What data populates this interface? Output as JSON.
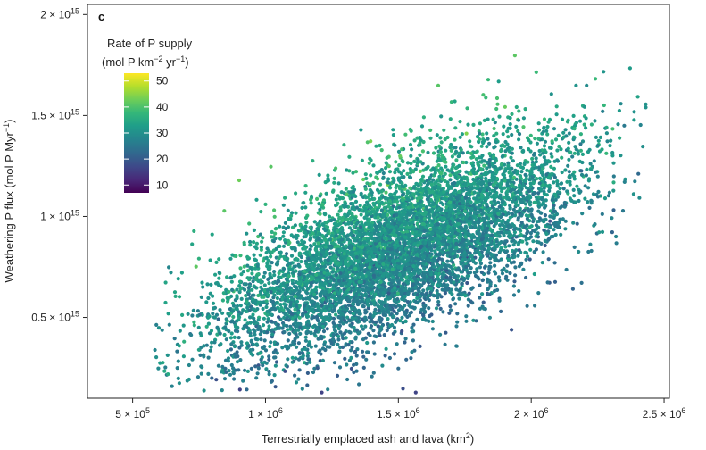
{
  "chart_data": {
    "type": "scatter",
    "panel_label": "c",
    "xlabel": "Terrestrially emplaced ash and lava (km",
    "xlabel_sup": "2",
    "xlabel_end": ")",
    "ylabel": "Weathering P flux (mol P Myr",
    "ylabel_sup": "−1",
    "ylabel_end": ")",
    "xlim": [
      330000,
      2520000
    ],
    "ylim": [
      100000000000000.0,
      2050000000000000.0
    ],
    "x_ticks": [
      {
        "value": 500000,
        "mantissa": "5 × 10",
        "exp": "5"
      },
      {
        "value": 1000000,
        "mantissa": "1 × 10",
        "exp": "6"
      },
      {
        "value": 1500000,
        "mantissa": "1.5 × 10",
        "exp": "6"
      },
      {
        "value": 2000000,
        "mantissa": "2 × 10",
        "exp": "6"
      },
      {
        "value": 2500000,
        "mantissa": "2.5 × 10",
        "exp": "6"
      }
    ],
    "y_ticks": [
      {
        "value": 500000000000000.0,
        "mantissa": "0.5 × 10",
        "exp": "15"
      },
      {
        "value": 1000000000000000.0,
        "mantissa": "1 × 10",
        "exp": "15"
      },
      {
        "value": 1500000000000000.0,
        "mantissa": "1.5 × 10",
        "exp": "15"
      },
      {
        "value": 2000000000000000.0,
        "mantissa": "2 × 10",
        "exp": "15"
      }
    ],
    "legend": {
      "title_line1": "Rate of P supply",
      "title_line2": "(mol P km",
      "title_line2_sup": "−2",
      "title_line2_mid": " yr",
      "title_line2_sup2": "−1",
      "title_line2_end": ")",
      "position": "top-left",
      "min": 7,
      "max": 53,
      "ticks": [
        10,
        20,
        30,
        40,
        50
      ]
    },
    "colormap": [
      "#440154",
      "#482878",
      "#3e4989",
      "#31688e",
      "#26828e",
      "#1f9e89",
      "#35b779",
      "#6ece58",
      "#b5de2b",
      "#fde725"
    ],
    "generator": {
      "n_points": 7000,
      "seed": 7,
      "x_mean": 1500000,
      "x_sd": 330000,
      "x_min": 580000,
      "x_max": 2440000,
      "y_intercept": 50000000000000.0,
      "y_slope_per_km2": 530000000.0,
      "y_sd": 200000000000000.0,
      "y_min": 120000000000000.0,
      "y_max": 2050000000000000.0,
      "rate_base": 30,
      "rate_y_coef": 1.1e-14,
      "rate_x_coef": 1.4e-05,
      "rate_sd": 3.0,
      "rate_min": 7,
      "rate_max": 53
    }
  }
}
